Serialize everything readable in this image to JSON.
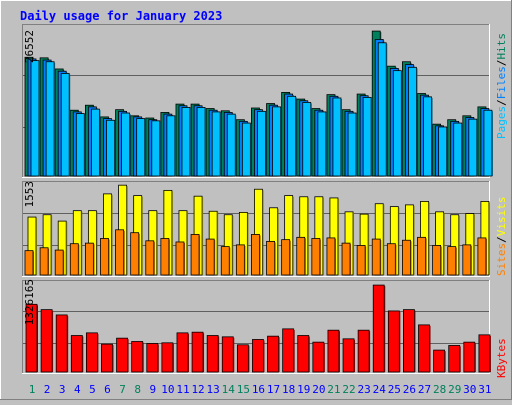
{
  "title": "Daily usage for January 2023",
  "colors": {
    "title": "#0000ff",
    "hits": "#00805c",
    "files": "#0080ff",
    "pages": "#00c0ff",
    "visits": "#ffff00",
    "sites": "#ff8000",
    "kbytes": "#ff0000",
    "weekend_label": "#00805c",
    "weekday_label": "#0000ff",
    "panel_bg": "#c0c0c0",
    "grid": "#000000"
  },
  "chart_data": [
    {
      "type": "bar",
      "panel": "hits-files-pages",
      "ymax_label": "26552",
      "ylim": [
        0,
        26552
      ],
      "legend": [
        "Pages",
        "Files",
        "Hits"
      ],
      "categories": [
        "1",
        "2",
        "3",
        "4",
        "5",
        "6",
        "7",
        "8",
        "9",
        "10",
        "11",
        "12",
        "13",
        "14",
        "15",
        "16",
        "17",
        "18",
        "19",
        "20",
        "21",
        "22",
        "23",
        "24",
        "25",
        "26",
        "27",
        "28",
        "29",
        "30",
        "31"
      ],
      "series": [
        {
          "name": "Hits",
          "values": [
            21300,
            21200,
            19200,
            11800,
            12700,
            10600,
            11900,
            10800,
            10400,
            11400,
            12900,
            12900,
            12100,
            11700,
            10100,
            12200,
            13000,
            15000,
            13800,
            12100,
            14600,
            11900,
            14700,
            26000,
            19700,
            20500,
            14800,
            9300,
            10100,
            10800,
            12400
          ]
        },
        {
          "name": "Files",
          "values": [
            21000,
            20800,
            18800,
            11500,
            12400,
            10300,
            11600,
            10600,
            10100,
            11100,
            12600,
            12600,
            11800,
            11400,
            9800,
            11900,
            12700,
            14700,
            13500,
            11800,
            14300,
            11600,
            14400,
            24500,
            19300,
            20000,
            14500,
            9000,
            9800,
            10500,
            12100
          ]
        },
        {
          "name": "Pages",
          "values": [
            20700,
            20500,
            18400,
            11200,
            12000,
            10000,
            11300,
            10300,
            9900,
            10800,
            12300,
            12300,
            11500,
            11100,
            9500,
            11600,
            12400,
            14300,
            13200,
            11500,
            14000,
            11300,
            14100,
            23900,
            18900,
            19500,
            14200,
            8800,
            9500,
            10200,
            11800
          ]
        }
      ]
    },
    {
      "type": "bar",
      "panel": "visits-sites",
      "ymax_label": "1553",
      "ylim": [
        0,
        1553
      ],
      "legend": [
        "Sites",
        "Visits"
      ],
      "categories": [
        "1",
        "2",
        "3",
        "4",
        "5",
        "6",
        "7",
        "8",
        "9",
        "10",
        "11",
        "12",
        "13",
        "14",
        "15",
        "16",
        "17",
        "18",
        "19",
        "20",
        "21",
        "22",
        "23",
        "24",
        "25",
        "26",
        "27",
        "28",
        "29",
        "30",
        "31"
      ],
      "series": [
        {
          "name": "Visits",
          "values": [
            1000,
            1040,
            930,
            1110,
            1110,
            1400,
            1550,
            1370,
            1110,
            1460,
            1110,
            1360,
            1100,
            1040,
            1080,
            1480,
            1160,
            1370,
            1350,
            1350,
            1330,
            1090,
            1050,
            1230,
            1180,
            1210,
            1270,
            1090,
            1040,
            1060,
            1270
          ]
        },
        {
          "name": "Sites",
          "values": [
            420,
            470,
            430,
            540,
            550,
            630,
            780,
            730,
            590,
            630,
            570,
            700,
            620,
            490,
            520,
            700,
            580,
            610,
            650,
            630,
            640,
            550,
            510,
            620,
            540,
            600,
            650,
            510,
            490,
            520,
            640
          ]
        }
      ]
    },
    {
      "type": "bar",
      "panel": "kbytes",
      "ymax_label": "1326165",
      "ylim": [
        0,
        1326165
      ],
      "legend": [
        "KBytes"
      ],
      "categories": [
        "1",
        "2",
        "3",
        "4",
        "5",
        "6",
        "7",
        "8",
        "9",
        "10",
        "11",
        "12",
        "13",
        "14",
        "15",
        "16",
        "17",
        "18",
        "19",
        "20",
        "21",
        "22",
        "23",
        "24",
        "25",
        "26",
        "27",
        "28",
        "29",
        "30",
        "31"
      ],
      "series": [
        {
          "name": "KBytes",
          "values": [
            1020000,
            940000,
            860000,
            550000,
            590000,
            420000,
            510000,
            460000,
            430000,
            440000,
            590000,
            600000,
            550000,
            530000,
            410000,
            490000,
            540000,
            650000,
            550000,
            450000,
            630000,
            500000,
            630000,
            1310000,
            920000,
            940000,
            710000,
            330000,
            400000,
            450000,
            560000
          ]
        }
      ]
    }
  ],
  "x_labels": [
    {
      "text": "1",
      "weekend": true
    },
    {
      "text": "2",
      "weekend": false
    },
    {
      "text": "3",
      "weekend": false
    },
    {
      "text": "4",
      "weekend": false
    },
    {
      "text": "5",
      "weekend": false
    },
    {
      "text": "6",
      "weekend": false
    },
    {
      "text": "7",
      "weekend": true
    },
    {
      "text": "8",
      "weekend": true
    },
    {
      "text": "9",
      "weekend": false
    },
    {
      "text": "10",
      "weekend": false
    },
    {
      "text": "11",
      "weekend": false
    },
    {
      "text": "12",
      "weekend": false
    },
    {
      "text": "13",
      "weekend": false
    },
    {
      "text": "14",
      "weekend": true
    },
    {
      "text": "15",
      "weekend": true
    },
    {
      "text": "16",
      "weekend": false
    },
    {
      "text": "17",
      "weekend": false
    },
    {
      "text": "18",
      "weekend": false
    },
    {
      "text": "19",
      "weekend": false
    },
    {
      "text": "20",
      "weekend": false
    },
    {
      "text": "21",
      "weekend": true
    },
    {
      "text": "22",
      "weekend": true
    },
    {
      "text": "23",
      "weekend": false
    },
    {
      "text": "24",
      "weekend": false
    },
    {
      "text": "25",
      "weekend": false
    },
    {
      "text": "26",
      "weekend": false
    },
    {
      "text": "27",
      "weekend": false
    },
    {
      "text": "28",
      "weekend": true
    },
    {
      "text": "29",
      "weekend": true
    },
    {
      "text": "30",
      "weekend": false
    },
    {
      "text": "31",
      "weekend": false
    }
  ],
  "legend_sep": "/"
}
